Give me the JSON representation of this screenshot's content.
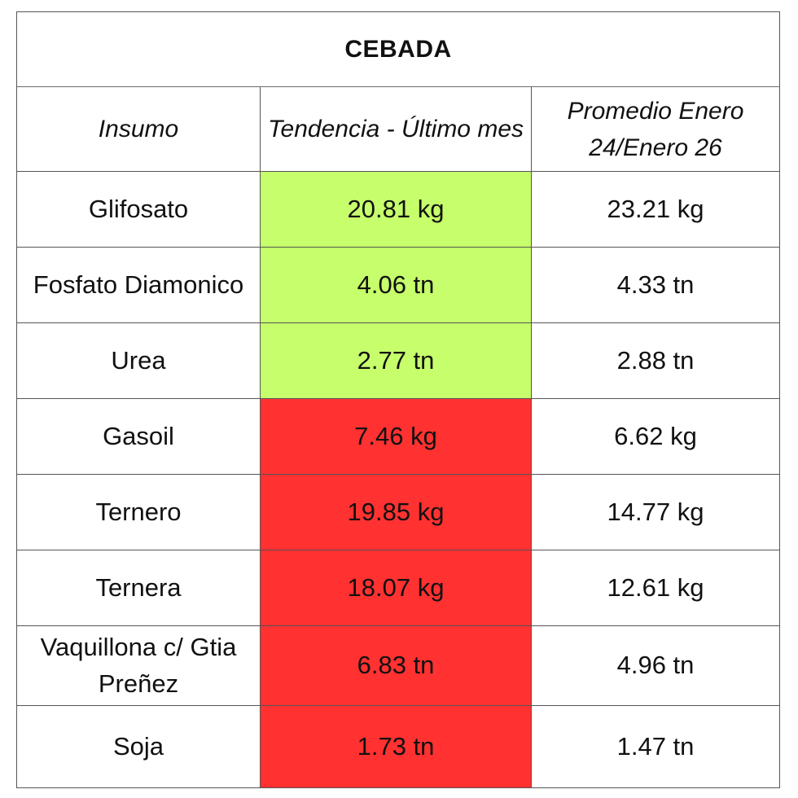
{
  "title": "CEBADA",
  "headers": {
    "insumo": "Insumo",
    "tendencia": "Tendencia - Último mes",
    "promedio": "Promedio Enero 24/Enero 26"
  },
  "colors": {
    "favorable": "#c6ff6b",
    "unfavorable": "#ff3131"
  },
  "rows": [
    {
      "insumo": "Glifosato",
      "tendencia": "20.81 kg",
      "promedio": "23.21 kg",
      "status": "favorable"
    },
    {
      "insumo": "Fosfato Diamonico",
      "tendencia": "4.06 tn",
      "promedio": "4.33 tn",
      "status": "favorable"
    },
    {
      "insumo": "Urea",
      "tendencia": "2.77 tn",
      "promedio": "2.88 tn",
      "status": "favorable"
    },
    {
      "insumo": "Gasoil",
      "tendencia": "7.46 kg",
      "promedio": "6.62 kg",
      "status": "unfavorable"
    },
    {
      "insumo": "Ternero",
      "tendencia": "19.85 kg",
      "promedio": "14.77 kg",
      "status": "unfavorable"
    },
    {
      "insumo": "Ternera",
      "tendencia": "18.07 kg",
      "promedio": "12.61 kg",
      "status": "unfavorable"
    },
    {
      "insumo": "Vaquillona c/ Gtia Preñez",
      "tendencia": "6.83 tn",
      "promedio": "4.96 tn",
      "status": "unfavorable"
    },
    {
      "insumo": "Soja",
      "tendencia": "1.73 tn",
      "promedio": "1.47 tn",
      "status": "unfavorable"
    }
  ]
}
